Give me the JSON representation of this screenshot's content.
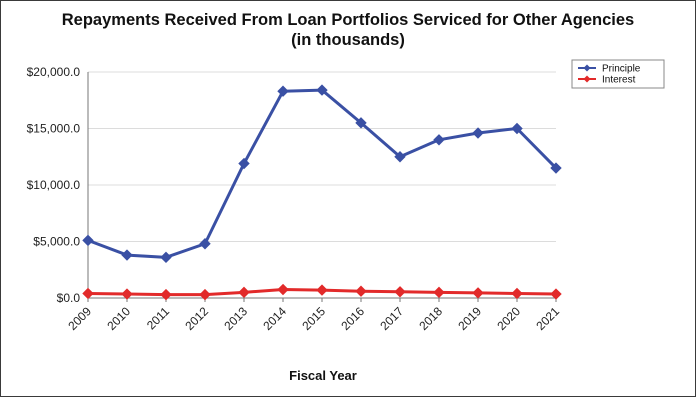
{
  "chart_data": {
    "type": "line",
    "title": "Repayments Received From Loan Portfolios Serviced for Other Agencies",
    "subtitle": "(in thousands)",
    "xlabel": "Fiscal Year",
    "ylabel": "",
    "x": [
      "2009",
      "2010",
      "2011",
      "2012",
      "2013",
      "2014",
      "2015",
      "2016",
      "2017",
      "2018",
      "2019",
      "2020",
      "2021"
    ],
    "ylim": [
      0,
      20000
    ],
    "yticks": [
      0,
      5000,
      10000,
      15000,
      20000
    ],
    "ytick_labels": [
      "$0.0",
      "$5,000.0",
      "$10,000.0",
      "$15,000.0",
      "$20,000.0"
    ],
    "grid": true,
    "legend_position": "top-right",
    "series": [
      {
        "name": "Principle",
        "color": "#3a50a4",
        "values": [
          5100,
          3800,
          3600,
          4800,
          11900,
          18300,
          18400,
          15500,
          12500,
          14000,
          14600,
          15000,
          11500
        ]
      },
      {
        "name": "Interest",
        "color": "#e22a2a",
        "values": [
          400,
          350,
          300,
          300,
          500,
          750,
          700,
          600,
          550,
          500,
          450,
          400,
          350
        ]
      }
    ]
  }
}
